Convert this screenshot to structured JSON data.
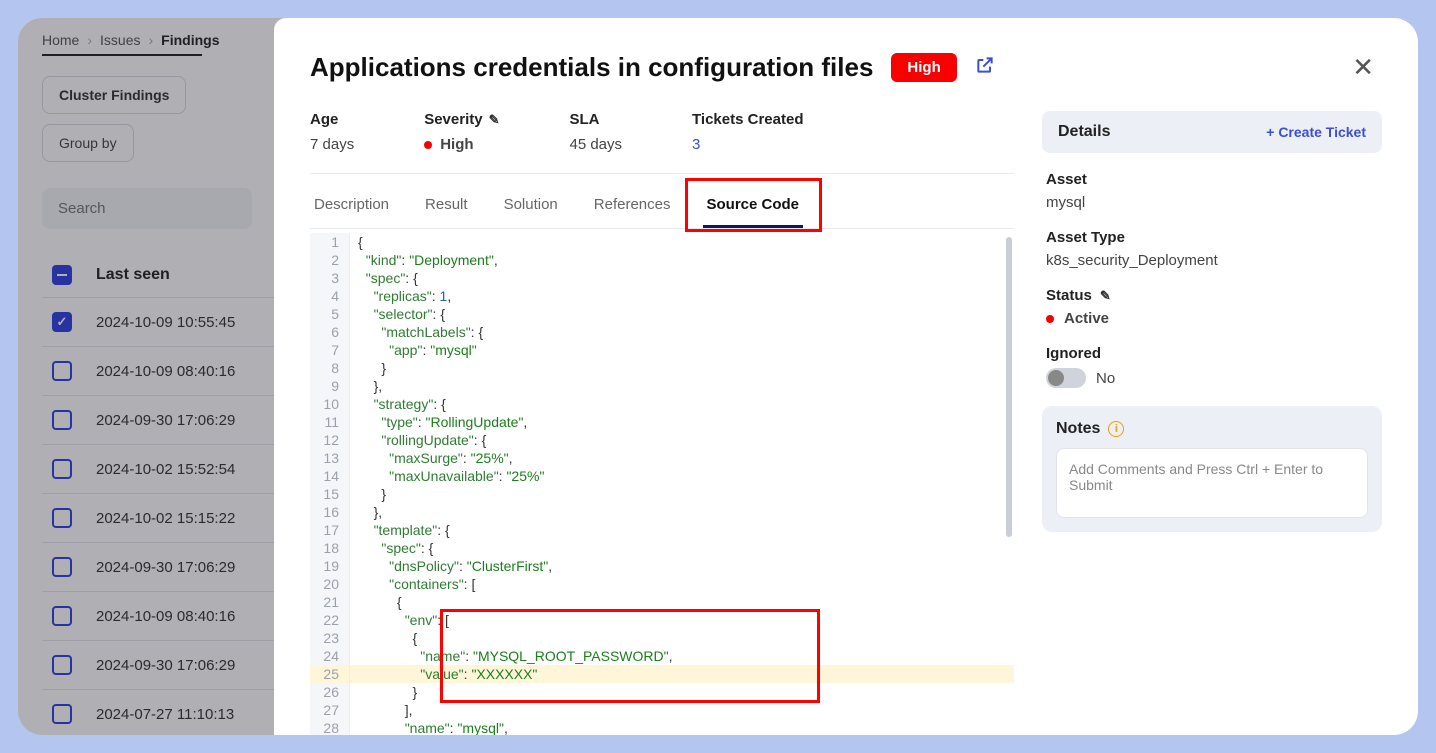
{
  "breadcrumb": {
    "home": "Home",
    "issues": "Issues",
    "findings": "Findings"
  },
  "filters": {
    "cluster": "Cluster Findings",
    "groupby": "Group by"
  },
  "search": {
    "placeholder": "Search"
  },
  "table": {
    "col_lastseen": "Last seen",
    "rows": [
      {
        "ts": "2024-10-09 10:55:45",
        "checked": true
      },
      {
        "ts": "2024-10-09 08:40:16",
        "checked": false
      },
      {
        "ts": "2024-09-30 17:06:29",
        "checked": false
      },
      {
        "ts": "2024-10-02 15:52:54",
        "checked": false
      },
      {
        "ts": "2024-10-02 15:15:22",
        "checked": false
      },
      {
        "ts": "2024-09-30 17:06:29",
        "checked": false
      },
      {
        "ts": "2024-10-09 08:40:16",
        "checked": false
      },
      {
        "ts": "2024-09-30 17:06:29",
        "checked": false
      },
      {
        "ts": "2024-07-27 11:10:13",
        "checked": false
      }
    ]
  },
  "modal": {
    "title": "Applications credentials in configuration files",
    "severity_pill": "High",
    "meta": {
      "age_label": "Age",
      "age_value": "7 days",
      "severity_label": "Severity",
      "severity_value": "High",
      "sla_label": "SLA",
      "sla_value": "45 days",
      "tickets_label": "Tickets Created",
      "tickets_value": "3"
    },
    "tabs": {
      "description": "Description",
      "result": "Result",
      "solution": "Solution",
      "references": "References",
      "source_code": "Source Code"
    },
    "active_tab": "source_code",
    "code": {
      "lines": [
        "{",
        "  \"kind\": \"Deployment\",",
        "  \"spec\": {",
        "    \"replicas\": 1,",
        "    \"selector\": {",
        "      \"matchLabels\": {",
        "        \"app\": \"mysql\"",
        "      }",
        "    },",
        "    \"strategy\": {",
        "      \"type\": \"RollingUpdate\",",
        "      \"rollingUpdate\": {",
        "        \"maxSurge\": \"25%\",",
        "        \"maxUnavailable\": \"25%\"",
        "      }",
        "    },",
        "    \"template\": {",
        "      \"spec\": {",
        "        \"dnsPolicy\": \"ClusterFirst\",",
        "        \"containers\": [",
        "          {",
        "            \"env\": [",
        "              {",
        "                \"name\": \"MYSQL_ROOT_PASSWORD\",",
        "                \"value\": \"XXXXXX\"",
        "              }",
        "            ],",
        "            \"name\": \"mysql\","
      ],
      "highlight_line": 25,
      "redbox_start": 22,
      "redbox_end": 26,
      "colors": {
        "key": "#2e7d32",
        "string": "#1a7f1a",
        "number": "#1a5fd0",
        "punct": "#333333",
        "gutter_bg": "#f5f6f9",
        "highlight_bg": "#fff6d9",
        "redbox": "#ff0000"
      }
    },
    "side": {
      "details_label": "Details",
      "create_ticket": "+ Create Ticket",
      "asset_label": "Asset",
      "asset_value": "mysql",
      "asset_type_label": "Asset Type",
      "asset_type_value": "k8s_security_Deployment",
      "status_label": "Status",
      "status_value": "Active",
      "ignored_label": "Ignored",
      "ignored_value": "No",
      "notes_label": "Notes",
      "notes_placeholder": "Add Comments and Press Ctrl + Enter to Submit"
    }
  },
  "colors": {
    "page_bg": "#b4c6f0",
    "accent": "#3a4fd8",
    "severity_red": "#f80000"
  }
}
